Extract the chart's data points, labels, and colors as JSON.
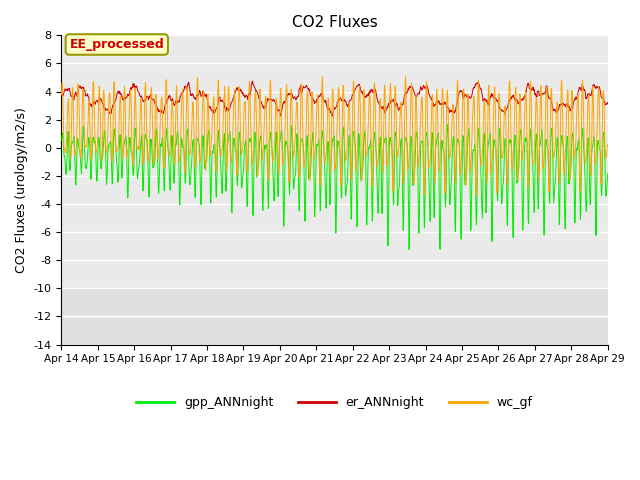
{
  "title": "CO2 Fluxes",
  "ylabel": "CO2 Fluxes (urology/m2/s)",
  "ylim": [
    -14,
    8
  ],
  "yticks": [
    -14,
    -12,
    -10,
    -8,
    -6,
    -4,
    -2,
    0,
    2,
    4,
    6,
    8
  ],
  "x_labels": [
    "Apr 14",
    "Apr 15",
    "Apr 16",
    "Apr 17",
    "Apr 18",
    "Apr 19",
    "Apr 20",
    "Apr 21",
    "Apr 22",
    "Apr 23",
    "Apr 24",
    "Apr 25",
    "Apr 26",
    "Apr 27",
    "Apr 28",
    "Apr 29"
  ],
  "legend_labels": [
    "gpp_ANNnight",
    "er_ANNnight",
    "wc_gf"
  ],
  "line_colors": [
    "#00ee00",
    "#cc0000",
    "#ffa500"
  ],
  "annotation_text": "EE_processed",
  "annotation_fg": "#cc0000",
  "annotation_bg": "#ffffcc",
  "annotation_edge": "#999900",
  "bg_color": "#e0e0e0",
  "n_points": 1500,
  "seed": 7
}
